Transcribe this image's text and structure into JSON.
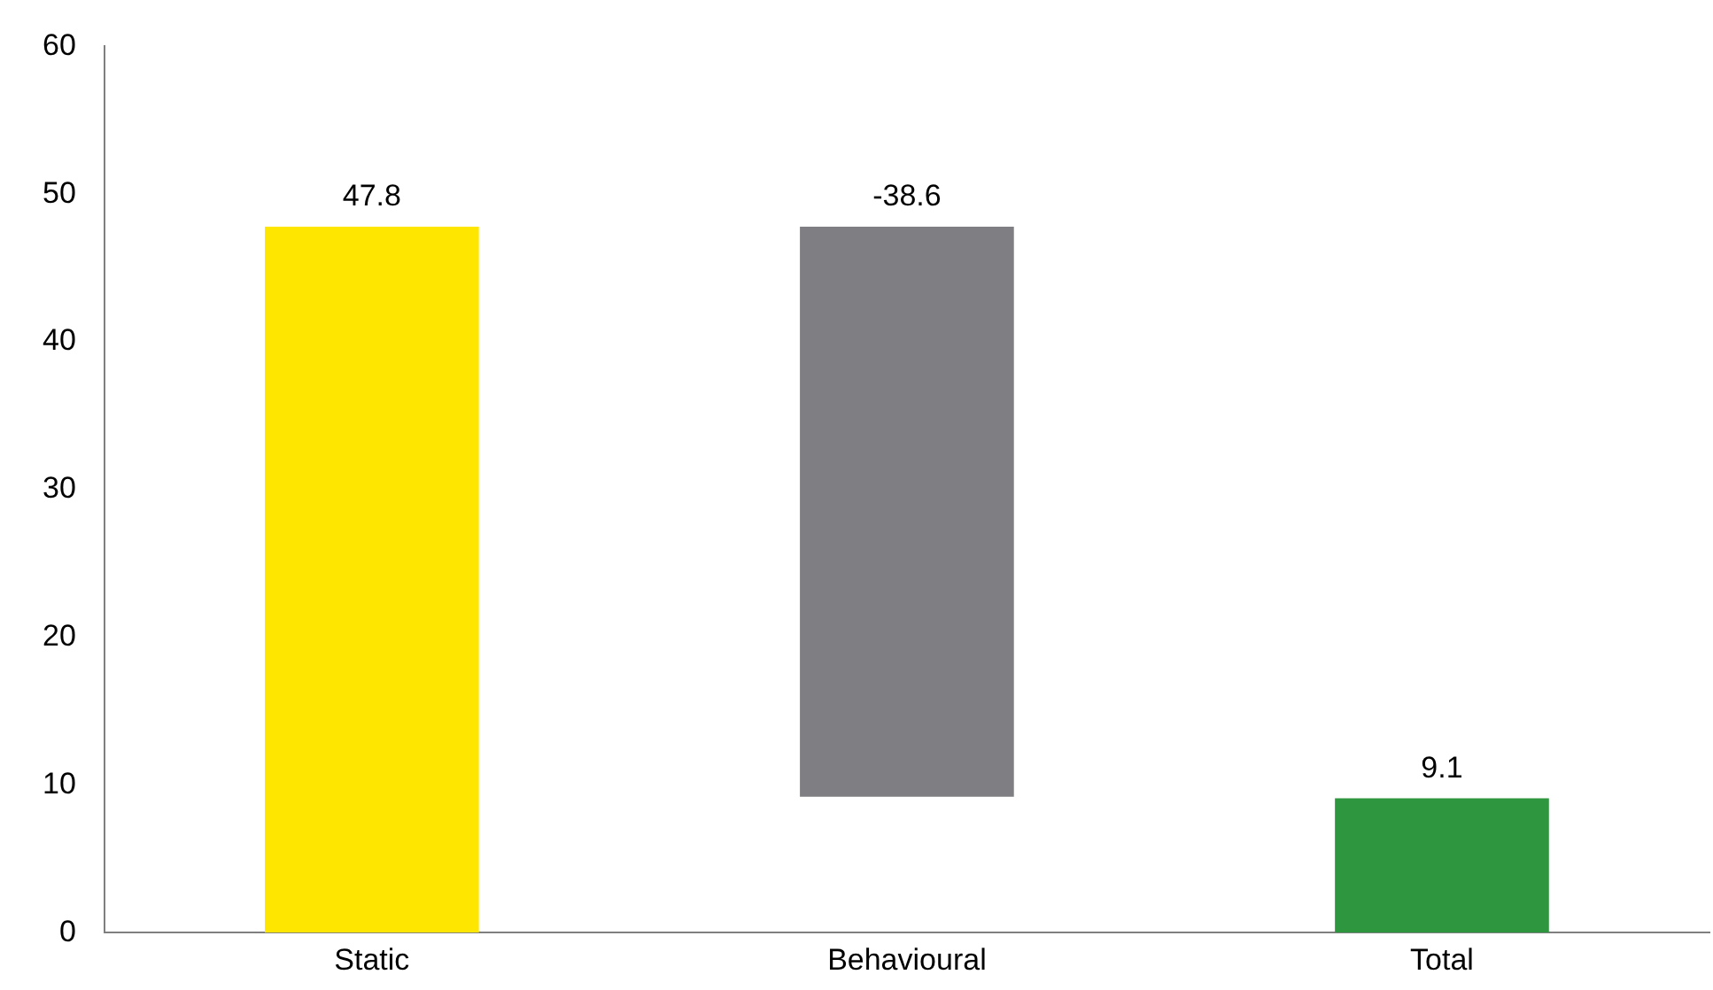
{
  "chart_data": {
    "type": "bar",
    "categories": [
      "Static",
      "Behavioural",
      "Total"
    ],
    "values": [
      47.8,
      -38.6,
      9.1
    ],
    "base": [
      0,
      47.8,
      0
    ],
    "colors": [
      "#ffe600",
      "#7f7f83",
      "#2e963e"
    ],
    "ylim": [
      0,
      60
    ],
    "yticks": [
      0,
      10,
      20,
      30,
      40,
      50,
      60
    ],
    "data_labels": true,
    "grid": false,
    "legend": false
  }
}
